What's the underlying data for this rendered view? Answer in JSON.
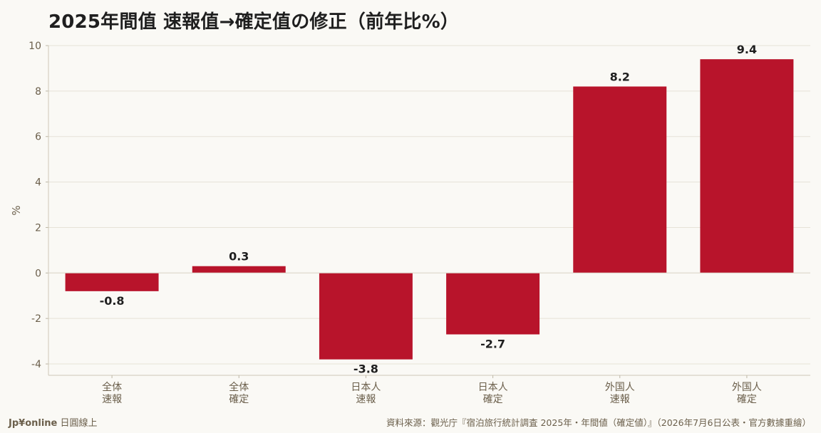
{
  "chart_data": {
    "type": "bar",
    "title": "2025年間值 速報值→確定值の修正（前年比%）",
    "ylabel": "%",
    "xlabel": "",
    "ylim": [
      -4.5,
      10
    ],
    "yticks": [
      -4,
      -2,
      0,
      2,
      4,
      6,
      8,
      10
    ],
    "ytick_labels": [
      "-4",
      "-2",
      "0",
      "2",
      "4",
      "6",
      "8",
      "10"
    ],
    "grid": true,
    "categories": [
      [
        "全体",
        "速報"
      ],
      [
        "全体",
        "確定"
      ],
      [
        "日本人",
        "速報"
      ],
      [
        "日本人",
        "確定"
      ],
      [
        "外国人",
        "速報"
      ],
      [
        "外国人",
        "確定"
      ]
    ],
    "values": [
      -0.8,
      0.3,
      -3.8,
      -2.7,
      8.2,
      9.4
    ],
    "value_labels": [
      "-0.8",
      "0.3",
      "-3.8",
      "-2.7",
      "8.2",
      "9.4"
    ],
    "bar_color": "#b8142b"
  },
  "footer": {
    "brand": "Jp¥online",
    "brand_sub": "日圓線上",
    "source": "資料來源：觀光庁『宿泊旅行統計調査 2025年・年間値（確定値）』（2026年7月6日公表・官方數據重繪）"
  }
}
